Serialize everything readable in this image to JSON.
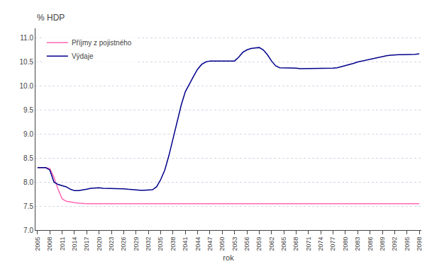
{
  "chart_data": {
    "type": "line",
    "ylabel": "% HDP",
    "xlabel": "rok",
    "x": [
      2005,
      2006,
      2007,
      2008,
      2009,
      2010,
      2011,
      2012,
      2013,
      2014,
      2015,
      2016,
      2017,
      2018,
      2019,
      2020,
      2021,
      2022,
      2023,
      2024,
      2025,
      2026,
      2027,
      2028,
      2029,
      2030,
      2031,
      2032,
      2033,
      2034,
      2035,
      2036,
      2037,
      2038,
      2039,
      2040,
      2041,
      2042,
      2043,
      2044,
      2045,
      2046,
      2047,
      2048,
      2049,
      2050,
      2051,
      2052,
      2053,
      2054,
      2055,
      2056,
      2057,
      2058,
      2059,
      2060,
      2061,
      2062,
      2063,
      2064,
      2065,
      2066,
      2067,
      2068,
      2069,
      2070,
      2071,
      2072,
      2073,
      2074,
      2075,
      2076,
      2077,
      2078,
      2079,
      2080,
      2081,
      2082,
      2083,
      2084,
      2085,
      2086,
      2087,
      2088,
      2089,
      2090,
      2091,
      2092,
      2093,
      2094,
      2095,
      2096,
      2097,
      2098
    ],
    "series": [
      {
        "name": "Příjmy z pojistného",
        "color": "#FF69B4",
        "values": [
          8.3,
          8.3,
          8.3,
          8.28,
          8.1,
          7.85,
          7.65,
          7.6,
          7.58,
          7.57,
          7.56,
          7.55,
          7.55,
          7.55,
          7.55,
          7.55,
          7.55,
          7.55,
          7.55,
          7.55,
          7.55,
          7.55,
          7.55,
          7.55,
          7.55,
          7.55,
          7.55,
          7.55,
          7.55,
          7.55,
          7.55,
          7.55,
          7.55,
          7.55,
          7.55,
          7.55,
          7.55,
          7.55,
          7.55,
          7.55,
          7.55,
          7.55,
          7.55,
          7.55,
          7.55,
          7.55,
          7.55,
          7.55,
          7.55,
          7.55,
          7.55,
          7.55,
          7.55,
          7.55,
          7.55,
          7.55,
          7.55,
          7.55,
          7.55,
          7.55,
          7.55,
          7.55,
          7.55,
          7.55,
          7.55,
          7.55,
          7.55,
          7.55,
          7.55,
          7.55,
          7.55,
          7.55,
          7.55,
          7.55,
          7.55,
          7.55,
          7.55,
          7.55,
          7.55,
          7.55,
          7.55,
          7.55,
          7.55,
          7.55,
          7.55,
          7.55,
          7.55,
          7.55,
          7.55,
          7.55,
          7.55,
          7.55,
          7.55,
          7.55
        ]
      },
      {
        "name": "Výdaje",
        "color": "#00008B",
        "values": [
          8.3,
          8.3,
          8.3,
          8.25,
          8.0,
          7.95,
          7.93,
          7.9,
          7.85,
          7.82,
          7.82,
          7.83,
          7.85,
          7.87,
          7.88,
          7.88,
          7.87,
          7.87,
          7.87,
          7.87,
          7.87,
          7.86,
          7.85,
          7.84,
          7.83,
          7.83,
          7.83,
          7.83,
          7.84,
          7.9,
          8.05,
          8.25,
          8.55,
          8.9,
          9.25,
          9.6,
          9.88,
          10.05,
          10.2,
          10.35,
          10.45,
          10.5,
          10.52,
          10.52,
          10.52,
          10.52,
          10.52,
          10.52,
          10.52,
          10.6,
          10.7,
          10.75,
          10.78,
          10.79,
          10.8,
          10.75,
          10.65,
          10.52,
          10.42,
          10.38,
          10.38,
          10.38,
          10.37,
          10.37,
          10.36,
          10.36,
          10.36,
          10.36,
          10.36,
          10.36,
          10.36,
          10.36,
          10.37,
          10.38,
          10.4,
          10.42,
          10.45,
          10.47,
          10.5,
          10.52,
          10.54,
          10.56,
          10.58,
          10.6,
          10.62,
          10.63,
          10.64,
          10.65,
          10.65,
          10.65,
          10.65,
          10.65,
          10.66,
          10.67
        ]
      }
    ],
    "xlim": [
      2004.5,
      2098.5
    ],
    "xticks": [
      2005,
      2008,
      2011,
      2014,
      2017,
      2020,
      2023,
      2026,
      2029,
      2032,
      2035,
      2038,
      2041,
      2044,
      2047,
      2050,
      2053,
      2056,
      2059,
      2062,
      2065,
      2068,
      2071,
      2074,
      2077,
      2080,
      2083,
      2086,
      2089,
      2092,
      2095,
      2098
    ],
    "ylim": [
      7.0,
      11.2
    ],
    "yticks": [
      {
        "value": 7.0,
        "label": "7.0"
      },
      7.5,
      {
        "value": 8.0,
        "label": "8.0"
      },
      8.5,
      {
        "value": 9.0,
        "label": "9.0"
      },
      9.5,
      {
        "value": 10.0,
        "label": "10.0"
      },
      10.5,
      {
        "value": 11.0,
        "label": "11.0"
      }
    ],
    "grid": "y",
    "legend": "upper left"
  }
}
